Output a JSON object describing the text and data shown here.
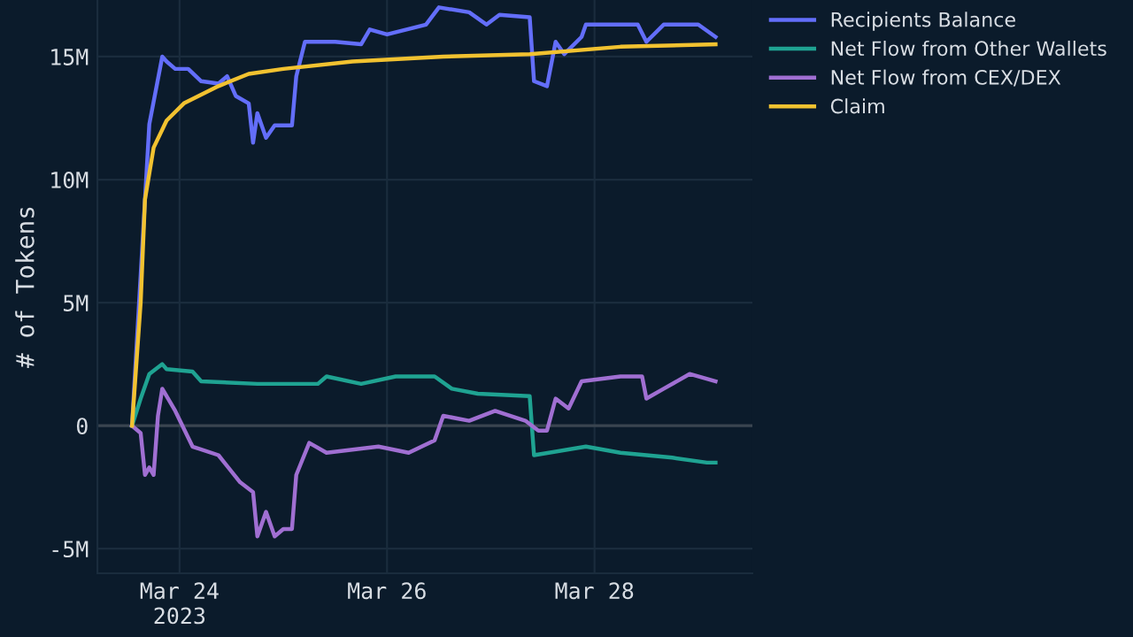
{
  "chart_data": {
    "type": "line",
    "ylabel": "# of Tokens",
    "xlim": [
      "2023-03-23T05:00",
      "2023-03-29T12:30"
    ],
    "xticks": [
      {
        "value": "2023-03-24",
        "label": "Mar 24\n2023"
      },
      {
        "value": "2023-03-26",
        "label": "Mar 26"
      },
      {
        "value": "2023-03-28",
        "label": "Mar 28"
      }
    ],
    "ylim": [
      -6000000,
      17300000
    ],
    "yticks": [
      {
        "value": -5000000,
        "label": "-5M"
      },
      {
        "value": 0,
        "label": "0"
      },
      {
        "value": 5000000,
        "label": "5M"
      },
      {
        "value": 10000000,
        "label": "10M"
      },
      {
        "value": 15000000,
        "label": "15M"
      }
    ],
    "grid": true,
    "legend": "top right",
    "ref_lines": [
      {
        "axis": "y",
        "value": 0,
        "label": null,
        "color": "#3a4550"
      }
    ],
    "series": [
      {
        "name": "Recipients Balance",
        "color": "#636efa",
        "x": [
          "2023-03-23T13:00",
          "2023-03-23T17:00",
          "2023-03-23T20:00",
          "2023-03-23T21:00",
          "2023-03-23T23:00",
          "2023-03-24T02:00",
          "2023-03-24T05:00",
          "2023-03-24T09:00",
          "2023-03-24T11:00",
          "2023-03-24T13:00",
          "2023-03-24T16:00",
          "2023-03-24T17:00",
          "2023-03-24T18:00",
          "2023-03-24T20:00",
          "2023-03-24T22:00",
          "2023-03-25T02:00",
          "2023-03-25T03:00",
          "2023-03-25T05:00",
          "2023-03-25T12:00",
          "2023-03-25T18:00",
          "2023-03-25T20:00",
          "2023-03-26T00:00",
          "2023-03-26T09:00",
          "2023-03-26T12:00",
          "2023-03-26T19:00",
          "2023-03-26T23:00",
          "2023-03-27T02:00",
          "2023-03-27T09:00",
          "2023-03-27T10:00",
          "2023-03-27T13:00",
          "2023-03-27T15:00",
          "2023-03-27T17:00",
          "2023-03-27T21:00",
          "2023-03-27T22:00",
          "2023-03-28T10:00",
          "2023-03-28T12:00",
          "2023-03-28T16:00",
          "2023-03-29T00:00",
          "2023-03-29T04:00"
        ],
        "values": [
          0,
          12250000,
          15000000,
          14800000,
          14500000,
          14500000,
          14000000,
          13900000,
          14200000,
          13400000,
          13100000,
          11500000,
          12700000,
          11700000,
          12200000,
          12200000,
          14200000,
          15600000,
          15600000,
          15500000,
          16100000,
          15900000,
          16300000,
          17000000,
          16800000,
          16300000,
          16700000,
          16600000,
          14000000,
          13800000,
          15600000,
          15100000,
          15800000,
          16300000,
          16300000,
          15600000,
          16300000,
          16300000,
          15800000
        ]
      },
      {
        "name": "Net Flow from Other Wallets",
        "color": "#1fa392",
        "x": [
          "2023-03-23T13:00",
          "2023-03-23T15:00",
          "2023-03-23T17:00",
          "2023-03-23T20:00",
          "2023-03-23T21:00",
          "2023-03-24T03:00",
          "2023-03-24T05:00",
          "2023-03-24T18:00",
          "2023-03-25T08:00",
          "2023-03-25T10:00",
          "2023-03-25T18:00",
          "2023-03-26T02:00",
          "2023-03-26T11:00",
          "2023-03-26T15:00",
          "2023-03-26T21:00",
          "2023-03-27T09:00",
          "2023-03-27T10:00",
          "2023-03-27T22:00",
          "2023-03-28T06:00",
          "2023-03-28T18:00",
          "2023-03-29T02:00",
          "2023-03-29T04:00"
        ],
        "values": [
          0,
          1100000,
          2100000,
          2500000,
          2300000,
          2200000,
          1800000,
          1700000,
          1700000,
          2000000,
          1700000,
          2000000,
          2000000,
          1500000,
          1300000,
          1200000,
          -1200000,
          -850000,
          -1100000,
          -1300000,
          -1500000,
          -1500000
        ]
      },
      {
        "name": "Net Flow from CEX/DEX",
        "color": "#a06fd2",
        "x": [
          "2023-03-23T13:00",
          "2023-03-23T15:00",
          "2023-03-23T16:00",
          "2023-03-23T17:00",
          "2023-03-23T18:00",
          "2023-03-23T19:00",
          "2023-03-23T20:00",
          "2023-03-23T23:00",
          "2023-03-24T03:00",
          "2023-03-24T09:00",
          "2023-03-24T14:00",
          "2023-03-24T17:00",
          "2023-03-24T18:00",
          "2023-03-24T20:00",
          "2023-03-24T22:00",
          "2023-03-25T00:00",
          "2023-03-25T02:00",
          "2023-03-25T03:00",
          "2023-03-25T06:00",
          "2023-03-25T10:00",
          "2023-03-25T22:00",
          "2023-03-26T05:00",
          "2023-03-26T11:00",
          "2023-03-26T13:00",
          "2023-03-26T19:00",
          "2023-03-27T01:00",
          "2023-03-27T08:00",
          "2023-03-27T11:00",
          "2023-03-27T13:00",
          "2023-03-27T15:00",
          "2023-03-27T18:00",
          "2023-03-27T21:00",
          "2023-03-28T06:00",
          "2023-03-28T11:00",
          "2023-03-28T12:00",
          "2023-03-28T16:00",
          "2023-03-28T22:00",
          "2023-03-29T04:00"
        ],
        "values": [
          0,
          -300000,
          -2000000,
          -1700000,
          -2000000,
          400000,
          1500000,
          600000,
          -850000,
          -1200000,
          -2300000,
          -2700000,
          -4500000,
          -3500000,
          -4500000,
          -4200000,
          -4200000,
          -2000000,
          -700000,
          -1100000,
          -850000,
          -1100000,
          -600000,
          400000,
          200000,
          600000,
          200000,
          -200000,
          -200000,
          1100000,
          700000,
          1800000,
          2000000,
          2000000,
          1100000,
          1500000,
          2100000,
          1800000
        ]
      },
      {
        "name": "Claim",
        "color": "#f2c230",
        "x": [
          "2023-03-23T13:00",
          "2023-03-23T15:00",
          "2023-03-23T16:00",
          "2023-03-23T18:00",
          "2023-03-23T21:00",
          "2023-03-24T01:00",
          "2023-03-24T09:00",
          "2023-03-24T16:00",
          "2023-03-25T00:00",
          "2023-03-25T16:00",
          "2023-03-26T13:00",
          "2023-03-27T09:00",
          "2023-03-28T06:00",
          "2023-03-29T04:00"
        ],
        "values": [
          0,
          5000000,
          9200000,
          11300000,
          12400000,
          13100000,
          13800000,
          14300000,
          14500000,
          14800000,
          15000000,
          15100000,
          15400000,
          15500000
        ]
      }
    ]
  }
}
